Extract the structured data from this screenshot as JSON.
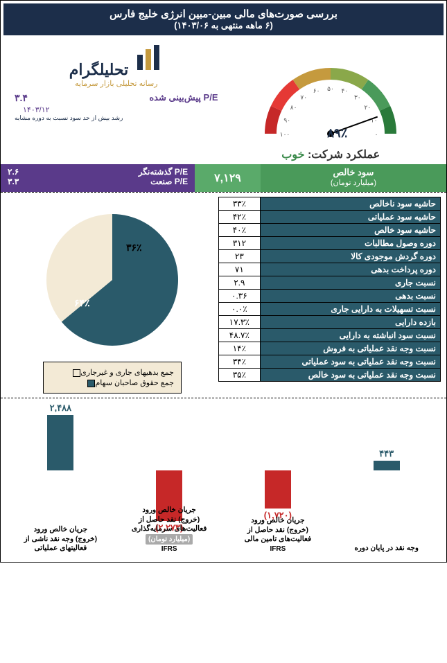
{
  "header": {
    "title": "بررسی صورت‌های مالی مبین-مبین انرژی خلیج فارس",
    "subtitle": "(۶ ماهه منتهی به ۱۴۰۳/۰۶)",
    "bg": "#1c2e4a"
  },
  "logo": {
    "brand": "تحلیلگرام",
    "tagline": "رسانه تحلیلی بازار سرمایه",
    "brand_color": "#1c2e4a",
    "tagline_color": "#c59a3e",
    "accent_color": "#c59a3e"
  },
  "pe": {
    "forward_label": "P/E پیش‌بینی شده",
    "forward_value": "۳.۴",
    "forward_date": "۱۴۰۳/۱۲",
    "growth_note": "رشد بیش از حد سود نسبت به دوره مشابه",
    "trailing_label": "P/E گذشته‌نگر",
    "trailing_value": "۲.۶",
    "industry_label": "P/E صنعت",
    "industry_value": "۳.۳",
    "label_color": "#5a3a8a",
    "block_bg": "#5a3a8a"
  },
  "gauge": {
    "value": 89,
    "value_label": "۸۹٪",
    "ticks": [
      "۱۰۰",
      "۹۰",
      "۸۰",
      "۷۰",
      "۶۰",
      "۵۰",
      "۴۰",
      "۳۰",
      "۲۰",
      "۱۰",
      "۰"
    ],
    "segments": [
      {
        "from": 180,
        "to": 155,
        "color": "#c62828"
      },
      {
        "from": 155,
        "to": 125,
        "color": "#e53935"
      },
      {
        "from": 125,
        "to": 90,
        "color": "#c59a3e"
      },
      {
        "from": 90,
        "to": 55,
        "color": "#8aa84a"
      },
      {
        "from": 55,
        "to": 25,
        "color": "#4a9a5a"
      },
      {
        "from": 25,
        "to": 0,
        "color": "#2a7a3a"
      }
    ],
    "needle_color": "#000",
    "perf_label": "عملکرد شرکت:",
    "perf_value": "خوب",
    "perf_value_color": "#3a8a4a"
  },
  "kpi": {
    "profit_label": "سود خالص",
    "profit_unit": "(میلیارد تومان)",
    "profit_value": "۷,۱۲۹",
    "profit_bg": "#4a9a5a",
    "profit_val_bg": "#5aaa6a"
  },
  "ratios": {
    "header_bg": "#2a5a6a",
    "header_color": "#ffffff",
    "rows": [
      {
        "label": "حاشیه سود ناخالص",
        "value": "۳۳٪"
      },
      {
        "label": "حاشیه سود عملیاتی",
        "value": "۴۲٪"
      },
      {
        "label": "حاشیه سود خالص",
        "value": "۴۰٪"
      },
      {
        "label": "دوره وصول مطالبات",
        "value": "۳۱۲"
      },
      {
        "label": "دوره گردش موجودی کالا",
        "value": "۲۳"
      },
      {
        "label": "دوره پرداخت بدهی",
        "value": "۷۱"
      },
      {
        "label": "نسبت جاری",
        "value": "۲.۹"
      },
      {
        "label": "نسبت بدهی",
        "value": "۰.۳۶"
      },
      {
        "label": "نسبت تسهیلات به دارایی جاری",
        "value": "۰.۰٪"
      },
      {
        "label": "بازده دارایی",
        "value": "۱۷.۳٪"
      },
      {
        "label": "نسبت سود انباشته به دارایی",
        "value": "۴۸.۷٪"
      },
      {
        "label": "نسبت وجه نقد عملیاتی به فروش",
        "value": "۱۴٪"
      },
      {
        "label": "نسبت وجه نقد عملیاتی به سود عملیاتی",
        "value": "۳۴٪"
      },
      {
        "label": "نسبت وجه نقد عملیاتی به سود خالص",
        "value": "۳۵٪"
      }
    ]
  },
  "pie": {
    "type": "pie",
    "bg": "#f3ead6",
    "slices": [
      {
        "label": "جمع حقوق صاحبان سهام",
        "value": 64,
        "display": "۶۴٪",
        "color": "#2a5a6a"
      },
      {
        "label": "جمع بدهیهای جاری و غیرجاری",
        "value": 36,
        "display": "۳۶٪",
        "color": "#f3ead6",
        "border": "#000"
      }
    ],
    "legend_bg": "#f3ead6"
  },
  "cashflow": {
    "type": "bar",
    "unit_label": "(میلیارد تومان)",
    "pos_color": "#2a5a6a",
    "neg_color": "#c62828",
    "baseline": 100,
    "max_abs": 2500,
    "bars": [
      {
        "label_lines": [
          "وجه نقد در پایان دوره"
        ],
        "value": 443,
        "display": "۴۴۳",
        "neg": false,
        "ifrs": ""
      },
      {
        "label_lines": [
          "جریان خالص ورود",
          "(خروج) نقد حاصل از",
          "فعالیت‌های تامین مالی"
        ],
        "value": -1720,
        "display": "(۱,۷۲۰)",
        "neg": true,
        "ifrs": "IFRS"
      },
      {
        "label_lines": [
          "جریان خالص ورود",
          "(خروج) نقد حاصل از",
          "فعالیت‌های سرمایه‌گذاری"
        ],
        "value": -2273,
        "display": "(۲,۲۷۳)",
        "neg": true,
        "ifrs": "IFRS"
      },
      {
        "label_lines": [
          "جریان خالص ورود",
          "(خروج) وجه نقد ناشی از",
          "فعالیتهای عملیاتی"
        ],
        "value": 2488,
        "display": "۲,۴۸۸",
        "neg": false,
        "ifrs": ""
      }
    ]
  }
}
